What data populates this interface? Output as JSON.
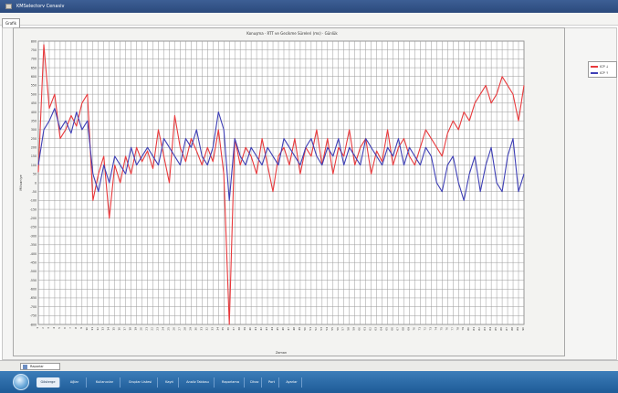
{
  "window": {
    "title": "KMSelectorv Cenasiv"
  },
  "tabs": [
    {
      "label": "Grafik"
    }
  ],
  "chart_data": {
    "type": "line",
    "title": "Konuşma · RTT ve Gecikme Süreleri (ms) · Günlük",
    "xlabel": "Zaman",
    "ylabel": "Milisaniye",
    "ylim": [
      -800,
      800
    ],
    "y_ticks": [
      "800",
      "750",
      "700",
      "650",
      "600",
      "550",
      "500",
      "450",
      "400",
      "350",
      "300",
      "250",
      "200",
      "150",
      "100",
      "50",
      "0",
      "-50",
      "-100",
      "-150",
      "-200",
      "-250",
      "-300",
      "-350",
      "-400",
      "-450",
      "-500",
      "-550",
      "-600",
      "-650",
      "-700",
      "-750",
      "-800"
    ],
    "x": [
      1,
      2,
      3,
      4,
      5,
      6,
      7,
      8,
      9,
      10,
      11,
      12,
      13,
      14,
      15,
      16,
      17,
      18,
      19,
      20,
      21,
      22,
      23,
      24,
      25,
      26,
      27,
      28,
      29,
      30,
      31,
      32,
      33,
      34,
      35,
      36,
      37,
      38,
      39,
      40,
      41,
      42,
      43,
      44,
      45,
      46,
      47,
      48,
      49,
      50,
      51,
      52,
      53,
      54,
      55,
      56,
      57,
      58,
      59,
      60,
      61,
      62,
      63,
      64,
      65,
      66,
      67,
      68,
      69,
      70,
      71,
      72,
      73,
      74,
      75,
      76,
      77,
      78,
      79,
      80,
      81,
      82,
      83,
      84,
      85,
      86,
      87,
      88,
      89,
      90
    ],
    "series": [
      {
        "name": "ICP ↓",
        "color": "#e8393c",
        "values": [
          60,
          780,
          420,
          500,
          250,
          300,
          380,
          320,
          450,
          500,
          -100,
          50,
          150,
          -200,
          100,
          0,
          150,
          50,
          200,
          120,
          180,
          80,
          300,
          150,
          0,
          380,
          200,
          120,
          250,
          180,
          100,
          200,
          120,
          300,
          50,
          -800,
          250,
          100,
          200,
          150,
          50,
          250,
          100,
          -50,
          150,
          200,
          100,
          250,
          50,
          200,
          150,
          300,
          100,
          250,
          50,
          200,
          150,
          300,
          100,
          200,
          250,
          50,
          180,
          120,
          300,
          100,
          200,
          250,
          150,
          100,
          200,
          300,
          250,
          200,
          150,
          280,
          350,
          300,
          400,
          350,
          450,
          500,
          550,
          450,
          500,
          600,
          550,
          500,
          350,
          550
        ]
      },
      {
        "name": "ICP ↑",
        "color": "#3e3fb6",
        "values": [
          100,
          300,
          350,
          420,
          300,
          350,
          280,
          400,
          300,
          350,
          50,
          -50,
          100,
          0,
          150,
          100,
          50,
          200,
          100,
          150,
          200,
          150,
          100,
          250,
          200,
          150,
          100,
          250,
          200,
          300,
          150,
          100,
          200,
          400,
          300,
          -100,
          250,
          150,
          100,
          200,
          150,
          100,
          200,
          150,
          100,
          250,
          200,
          150,
          100,
          200,
          250,
          150,
          100,
          200,
          150,
          250,
          100,
          200,
          150,
          100,
          250,
          200,
          150,
          100,
          200,
          150,
          250,
          100,
          200,
          150,
          100,
          200,
          150,
          0,
          -50,
          100,
          150,
          0,
          -100,
          50,
          150,
          -50,
          100,
          200,
          0,
          -50,
          150,
          250,
          -50,
          50
        ]
      }
    ],
    "legend_position": "right",
    "grid": true
  },
  "bottom_bar": {
    "button_label": "Raporlar"
  },
  "taskbar": {
    "items": [
      {
        "label": "Gösterge"
      },
      {
        "label": "Ağlar"
      },
      {
        "label": "Kullanıcılar"
      },
      {
        "label": "Gruplar Listesi"
      },
      {
        "label": "Kayıt"
      },
      {
        "label": "Analiz Tablosu"
      },
      {
        "label": "Raporlama"
      },
      {
        "label": "Cihaz"
      },
      {
        "label": "Port"
      },
      {
        "label": "Ayarlar"
      }
    ]
  }
}
